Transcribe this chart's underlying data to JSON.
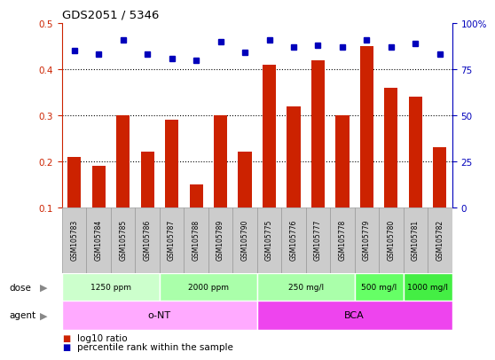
{
  "title": "GDS2051 / 5346",
  "samples": [
    "GSM105783",
    "GSM105784",
    "GSM105785",
    "GSM105786",
    "GSM105787",
    "GSM105788",
    "GSM105789",
    "GSM105790",
    "GSM105775",
    "GSM105776",
    "GSM105777",
    "GSM105778",
    "GSM105779",
    "GSM105780",
    "GSM105781",
    "GSM105782"
  ],
  "log10_ratio": [
    0.21,
    0.19,
    0.3,
    0.22,
    0.29,
    0.15,
    0.3,
    0.22,
    0.41,
    0.32,
    0.42,
    0.3,
    0.45,
    0.36,
    0.34,
    0.23
  ],
  "percentile_rank_pct": [
    85,
    83,
    91,
    83,
    81,
    80,
    90,
    84,
    91,
    87,
    88,
    87,
    91,
    87,
    89,
    83
  ],
  "bar_color": "#cc2200",
  "dot_color": "#0000bb",
  "ylim_left": [
    0.1,
    0.5
  ],
  "ylim_right": [
    0,
    100
  ],
  "yticks_left": [
    0.1,
    0.2,
    0.3,
    0.4,
    0.5
  ],
  "yticks_right": [
    0,
    25,
    50,
    75,
    100
  ],
  "dose_groups": [
    {
      "label": "1250 ppm",
      "start": 0,
      "end": 4,
      "color": "#ccffcc"
    },
    {
      "label": "2000 ppm",
      "start": 4,
      "end": 8,
      "color": "#aaffaa"
    },
    {
      "label": "250 mg/l",
      "start": 8,
      "end": 12,
      "color": "#aaffaa"
    },
    {
      "label": "500 mg/l",
      "start": 12,
      "end": 14,
      "color": "#66ff66"
    },
    {
      "label": "1000 mg/l",
      "start": 14,
      "end": 16,
      "color": "#44ee44"
    }
  ],
  "agent_groups": [
    {
      "label": "o-NT",
      "start": 0,
      "end": 8,
      "color": "#ffaaff"
    },
    {
      "label": "BCA",
      "start": 8,
      "end": 16,
      "color": "#ee44ee"
    }
  ],
  "legend_bar_label": "log10 ratio",
  "legend_dot_label": "percentile rank within the sample",
  "tick_color_left": "#cc2200",
  "tick_color_right": "#0000bb",
  "bg_sample": "#cccccc",
  "bg_sample_border": "#999999"
}
